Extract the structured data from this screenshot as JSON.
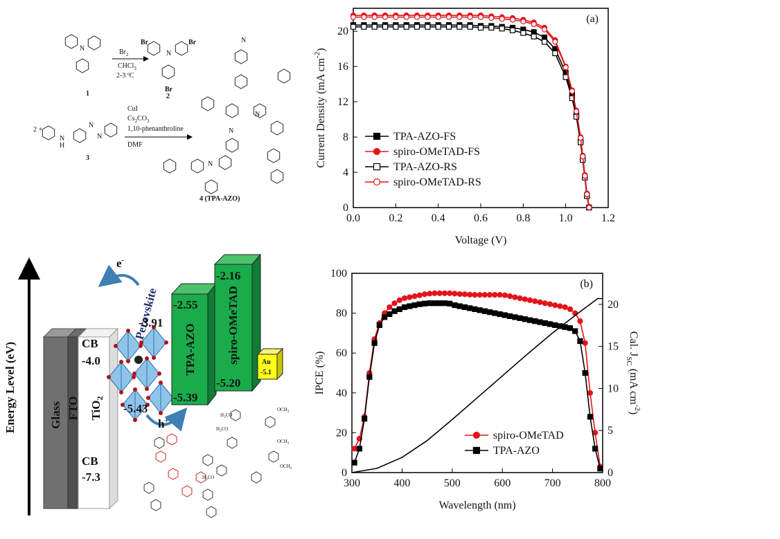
{
  "chart_data": [
    {
      "type": "line",
      "annotation": "(a)",
      "x_label": "Voltage (V)",
      "y_label": "Current Density (mA cm",
      "y_label_sup": "-2",
      "y_label_end": ")",
      "x": [
        0,
        0.05,
        0.1,
        0.15,
        0.2,
        0.25,
        0.3,
        0.35,
        0.4,
        0.45,
        0.5,
        0.55,
        0.6,
        0.65,
        0.7,
        0.75,
        0.8,
        0.85,
        0.9,
        0.95,
        1.0,
        1.03,
        1.05,
        1.07,
        1.08,
        1.09,
        1.1,
        1.11
      ],
      "xlim": [
        0,
        1.2
      ],
      "xticks": [
        {
          "value": 0,
          "label": "0.0"
        },
        0.2,
        0.4,
        0.6,
        0.8,
        {
          "value": 1,
          "label": "1.0"
        },
        1.2
      ],
      "ylim": [
        0,
        22.6
      ],
      "yticks": [
        0,
        4,
        8,
        12,
        16,
        20
      ],
      "legend": "lower left",
      "series": [
        {
          "name": "TPA-AZO-FS",
          "color": "#000000",
          "marker": "square",
          "filled": true,
          "values": [
            20.7,
            20.7,
            20.7,
            20.7,
            20.7,
            20.7,
            20.7,
            20.7,
            20.7,
            20.7,
            20.7,
            20.7,
            20.6,
            20.6,
            20.5,
            20.4,
            20.2,
            19.9,
            19.3,
            18.0,
            15.3,
            12.8,
            10.6,
            7.6,
            5.6,
            3.5,
            1.4,
            0
          ]
        },
        {
          "name": "spiro-OMeTAD-FS",
          "color": "#e3141b",
          "marker": "circle",
          "filled": true,
          "values": [
            21.8,
            21.8,
            21.8,
            21.8,
            21.8,
            21.8,
            21.8,
            21.8,
            21.8,
            21.8,
            21.8,
            21.8,
            21.8,
            21.7,
            21.6,
            21.5,
            21.3,
            21.0,
            20.4,
            19.0,
            16.0,
            13.3,
            11.0,
            8.0,
            5.9,
            3.7,
            1.6,
            0.1
          ]
        },
        {
          "name": "TPA-AZO-RS",
          "color": "#000000",
          "marker": "square",
          "filled": false,
          "values": [
            20.5,
            20.5,
            20.5,
            20.5,
            20.5,
            20.5,
            20.5,
            20.5,
            20.5,
            20.5,
            20.5,
            20.5,
            20.4,
            20.4,
            20.3,
            20.1,
            19.8,
            19.4,
            18.8,
            17.5,
            14.8,
            12.4,
            10.3,
            7.4,
            5.4,
            3.4,
            1.3,
            0
          ]
        },
        {
          "name": "spiro-OMeTAD-RS",
          "color": "#e3141b",
          "marker": "circle",
          "filled": false,
          "values": [
            21.6,
            21.6,
            21.6,
            21.6,
            21.6,
            21.6,
            21.6,
            21.6,
            21.6,
            21.6,
            21.6,
            21.6,
            21.6,
            21.5,
            21.4,
            21.3,
            21.1,
            20.8,
            20.2,
            18.8,
            15.9,
            13.2,
            10.9,
            7.9,
            5.8,
            3.6,
            1.5,
            0
          ]
        }
      ]
    },
    {
      "type": "line",
      "annotation": "(b)",
      "x_label": "Wavelength (nm)",
      "y_label": "IPCE (%)",
      "y2_label": "Cal. J",
      "y2_label_sub": "SC",
      "y2_label_mid": " (mA cm",
      "y2_label_sup": "-2",
      "y2_label_end": ")",
      "x": [
        305,
        315,
        325,
        335,
        345,
        355,
        365,
        375,
        385,
        395,
        405,
        415,
        425,
        435,
        445,
        455,
        465,
        475,
        485,
        495,
        505,
        515,
        525,
        535,
        545,
        555,
        565,
        575,
        585,
        595,
        605,
        615,
        625,
        635,
        645,
        655,
        665,
        675,
        685,
        695,
        705,
        715,
        725,
        735,
        745,
        755,
        765,
        775,
        785,
        795
      ],
      "xlim": [
        300,
        800
      ],
      "xticks": [
        300,
        400,
        500,
        600,
        700,
        800
      ],
      "ylim": [
        0,
        100
      ],
      "yticks": [
        0,
        20,
        40,
        60,
        80,
        100
      ],
      "y2lim": [
        0,
        23.7
      ],
      "y2ticks": [
        0,
        5,
        10,
        15,
        20
      ],
      "legend": "lower center",
      "series": [
        {
          "name": "spiro-OMeTAD",
          "color": "#e3141b",
          "marker": "circle",
          "filled": true,
          "values": [
            12,
            17,
            28,
            50,
            67,
            75,
            80,
            83,
            85,
            86.5,
            87.5,
            88,
            88.5,
            89,
            89.5,
            89.8,
            90,
            90,
            90,
            90,
            89.8,
            89.6,
            89.5,
            89.3,
            89.2,
            89.2,
            89.2,
            89.2,
            89.2,
            89.2,
            89,
            88.5,
            88,
            87.5,
            87,
            86.5,
            86,
            85.5,
            85,
            84.5,
            84,
            83.5,
            83,
            82,
            80,
            76,
            65,
            40,
            20,
            3
          ]
        },
        {
          "name": "TPA-AZO",
          "color": "#000000",
          "marker": "square",
          "filled": true,
          "values": [
            5,
            12,
            27,
            48,
            65,
            74,
            78,
            79.5,
            81,
            82,
            83,
            83.5,
            84,
            84.5,
            84.8,
            85,
            85,
            85,
            85,
            84.8,
            84,
            83.5,
            83,
            82.5,
            82,
            81.5,
            81,
            80.5,
            80,
            79.5,
            79,
            78.5,
            78,
            77.5,
            77,
            76.5,
            76,
            75.5,
            75,
            74.5,
            74,
            73.5,
            73,
            72.5,
            71,
            66,
            50,
            28,
            12,
            2
          ]
        },
        {
          "color": "#000000",
          "axis": "y2",
          "x": [
            300,
            350,
            400,
            450,
            500,
            550,
            600,
            650,
            700,
            750,
            790,
            800
          ],
          "values": [
            0,
            0.5,
            1.8,
            3.8,
            6.3,
            8.9,
            11.5,
            14.1,
            16.6,
            18.9,
            20.7,
            20.7
          ]
        }
      ]
    }
  ],
  "scheme": {
    "reagent": "Br",
    "reagent_sub": "2",
    "solvent": "CHCl",
    "solvent_sub": "3",
    "temperature": "2-3 ºC",
    "catalyst": "CuI",
    "base": "Cs",
    "base_sub1": "2",
    "base_mid": "CO",
    "base_sub2": "3",
    "ligand": "1,10-phenanthroline",
    "solvent2": "DMF",
    "compound1": "1",
    "compound2": "2",
    "compound3": "3",
    "compound4": "4 (TPA-AZO)",
    "plus": "2 +",
    "atom_br": "Br",
    "atom_n": "N",
    "atom_h": "H"
  },
  "energy_diagram": {
    "axis_label": "Energy Level (eV)",
    "electron": "e",
    "electron_sup": "-",
    "hole": "h",
    "hole_sup": "+",
    "glass": "Glass",
    "fto": "FTO",
    "tio2": "TiO",
    "tio2_sub": "2",
    "cb_label": "CB",
    "tio2_cb": "-4.0",
    "tio2_vb": "-7.3",
    "perovskite": "Perovskite",
    "perovskite_cb": "-3.91",
    "perovskite_vb": "-5.43",
    "tpa_azo": "TPA-AZO",
    "tpa_azo_lumo": "-2.55",
    "tpa_azo_homo": "-5.39",
    "spiro": "spiro-OMeTAD",
    "spiro_lumo": "-2.16",
    "spiro_homo": "-5.20",
    "au": "Au",
    "au_wf": "-5.1",
    "methoxy_h": "H",
    "methoxy_n": "3",
    "methoxy_co": "CO",
    "methoxy_och": "OCH"
  }
}
